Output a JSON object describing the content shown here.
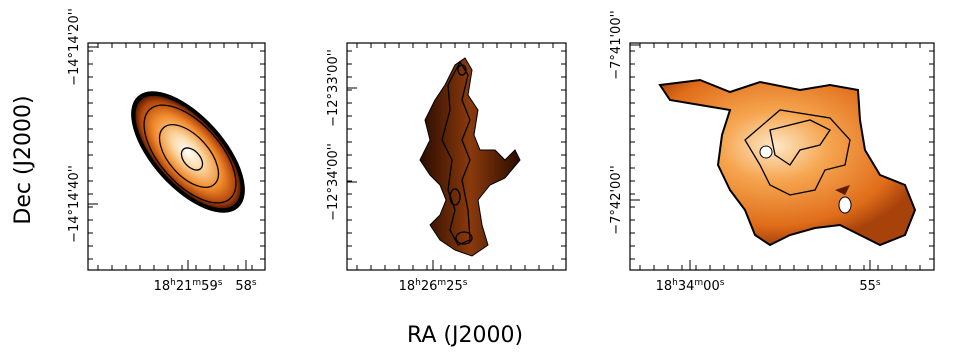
{
  "y_axis_label": "Dec (J2000)",
  "x_axis_label": "RA (J2000)",
  "panels": [
    {
      "y_ticks": [
        "−14°14'20''",
        "−14°14'40''"
      ],
      "x_ticks": [
        [
          "18",
          "h",
          "21",
          "m",
          "59",
          "s"
        ],
        [
          "58",
          "s"
        ]
      ]
    },
    {
      "y_ticks": [
        "−12°33'00''",
        "−12°34'00''"
      ],
      "x_ticks": [
        [
          "18",
          "h",
          "26",
          "m",
          "25",
          "s"
        ]
      ]
    },
    {
      "y_ticks": [
        "−7°41'00''",
        "−7°42'00''"
      ],
      "x_ticks": [
        [
          "18",
          "h",
          "34",
          "m",
          "00",
          "s"
        ],
        [
          "55",
          "s"
        ]
      ]
    }
  ]
}
